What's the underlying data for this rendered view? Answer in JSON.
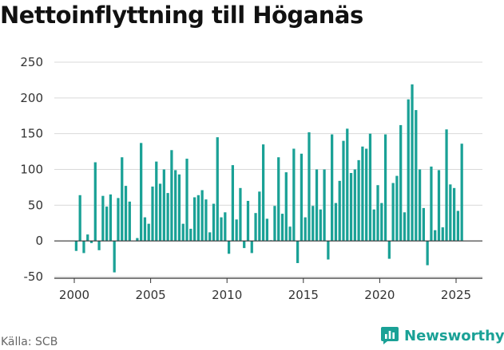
{
  "title": "Nettoinflyttning till Höganäs",
  "source": "Källa: SCB",
  "brand": "Newsworthy",
  "colors": {
    "bar": "#1aa196",
    "grid": "#d9d9d9",
    "axis": "#333333",
    "brand": "#1aa196"
  },
  "chart_data": {
    "type": "bar",
    "title": "Nettoinflyttning till Höganäs",
    "xlabel": "",
    "ylabel": "",
    "x_ticks": [
      2000,
      2005,
      2010,
      2015,
      2020,
      2025
    ],
    "y_ticks": [
      -50,
      0,
      50,
      100,
      150,
      200,
      250
    ],
    "xlim": [
      1999.0,
      2026.3
    ],
    "ylim": [
      -50,
      260
    ],
    "grid": true,
    "bar_width_years": 0.17,
    "x": [
      2000.125,
      2000.375,
      2000.625,
      2000.875,
      2001.125,
      2001.375,
      2001.625,
      2001.875,
      2002.125,
      2002.375,
      2002.625,
      2002.875,
      2003.125,
      2003.375,
      2003.625,
      2003.875,
      2004.125,
      2004.375,
      2004.625,
      2004.875,
      2005.125,
      2005.375,
      2005.625,
      2005.875,
      2006.125,
      2006.375,
      2006.625,
      2006.875,
      2007.125,
      2007.375,
      2007.625,
      2007.875,
      2008.125,
      2008.375,
      2008.625,
      2008.875,
      2009.125,
      2009.375,
      2009.625,
      2009.875,
      2010.125,
      2010.375,
      2010.625,
      2010.875,
      2011.125,
      2011.375,
      2011.625,
      2011.875,
      2012.125,
      2012.375,
      2012.625,
      2012.875,
      2013.125,
      2013.375,
      2013.625,
      2013.875,
      2014.125,
      2014.375,
      2014.625,
      2014.875,
      2015.125,
      2015.375,
      2015.625,
      2015.875,
      2016.125,
      2016.375,
      2016.625,
      2016.875,
      2017.125,
      2017.375,
      2017.625,
      2017.875,
      2018.125,
      2018.375,
      2018.625,
      2018.875,
      2019.125,
      2019.375,
      2019.625,
      2019.875,
      2020.125,
      2020.375,
      2020.625,
      2020.875,
      2021.125,
      2021.375,
      2021.625,
      2021.875,
      2022.125,
      2022.375,
      2022.625,
      2022.875,
      2023.125,
      2023.375,
      2023.625,
      2023.875,
      2024.125,
      2024.375,
      2024.625,
      2024.875,
      2025.125,
      2025.375
    ],
    "values": [
      -14,
      64,
      -17,
      9,
      -3,
      110,
      -13,
      63,
      48,
      65,
      -44,
      60,
      117,
      77,
      55,
      0,
      4,
      137,
      33,
      24,
      76,
      111,
      80,
      100,
      67,
      127,
      99,
      93,
      24,
      115,
      17,
      61,
      64,
      71,
      58,
      12,
      52,
      145,
      33,
      40,
      -18,
      106,
      30,
      74,
      -10,
      56,
      -17,
      39,
      69,
      135,
      31,
      1,
      49,
      117,
      38,
      96,
      20,
      129,
      -31,
      122,
      33,
      152,
      49,
      100,
      44,
      100,
      -26,
      149,
      53,
      84,
      140,
      157,
      95,
      100,
      113,
      132,
      129,
      150,
      44,
      78,
      53,
      149,
      -25,
      81,
      91,
      162,
      40,
      198,
      219,
      183,
      100,
      46,
      -34,
      104,
      15,
      99,
      19,
      156,
      79,
      74,
      42,
      136
    ]
  }
}
